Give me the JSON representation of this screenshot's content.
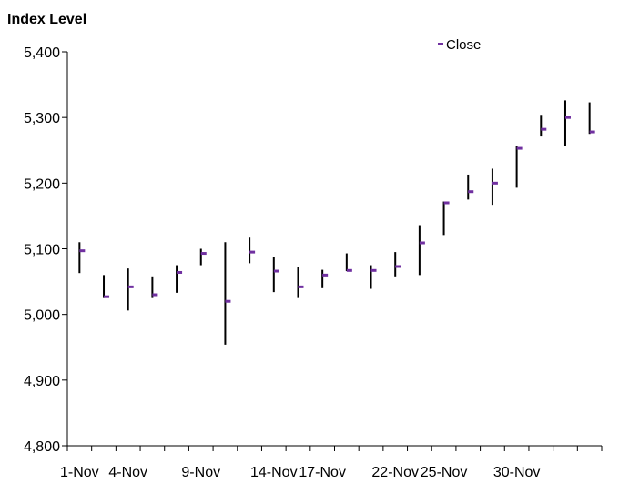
{
  "chart_data": {
    "type": "hlc",
    "title": "Index Level",
    "ylim": [
      4800,
      5400
    ],
    "ytick_step": 100,
    "ytick_labels": [
      "4,800",
      "4,900",
      "5,000",
      "5,100",
      "5,200",
      "5,300",
      "5,400"
    ],
    "xtick_labels": [
      "1-Nov",
      "4-Nov",
      "9-Nov",
      "14-Nov",
      "17-Nov",
      "22-Nov",
      "25-Nov",
      "30-Nov"
    ],
    "legend": {
      "entries": [
        "Close"
      ],
      "placement": "top-right"
    },
    "grid": false,
    "series": [
      {
        "name": "Close",
        "points": [
          {
            "high": 5110,
            "low": 5063,
            "close": 5097
          },
          {
            "high": 5060,
            "low": 5025,
            "close": 5027
          },
          {
            "high": 5070,
            "low": 5006,
            "close": 5042
          },
          {
            "high": 5058,
            "low": 5025,
            "close": 5030
          },
          {
            "high": 5075,
            "low": 5033,
            "close": 5064
          },
          {
            "high": 5100,
            "low": 5075,
            "close": 5093
          },
          {
            "high": 5110,
            "low": 4954,
            "close": 5020
          },
          {
            "high": 5117,
            "low": 5078,
            "close": 5095
          },
          {
            "high": 5087,
            "low": 5034,
            "close": 5066
          },
          {
            "high": 5072,
            "low": 5025,
            "close": 5042
          },
          {
            "high": 5068,
            "low": 5040,
            "close": 5060
          },
          {
            "high": 5093,
            "low": 5066,
            "close": 5067
          },
          {
            "high": 5075,
            "low": 5039,
            "close": 5067
          },
          {
            "high": 5095,
            "low": 5058,
            "close": 5073
          },
          {
            "high": 5136,
            "low": 5060,
            "close": 5109
          },
          {
            "high": 5172,
            "low": 5121,
            "close": 5170
          },
          {
            "high": 5213,
            "low": 5175,
            "close": 5187
          },
          {
            "high": 5222,
            "low": 5167,
            "close": 5200
          },
          {
            "high": 5256,
            "low": 5193,
            "close": 5253
          },
          {
            "high": 5304,
            "low": 5271,
            "close": 5282
          },
          {
            "high": 5326,
            "low": 5256,
            "close": 5300
          },
          {
            "high": 5323,
            "low": 5275,
            "close": 5278
          }
        ]
      }
    ],
    "colors": {
      "close_marker": "#7030a0",
      "range_line": "#000000",
      "axis": "#000000"
    }
  }
}
